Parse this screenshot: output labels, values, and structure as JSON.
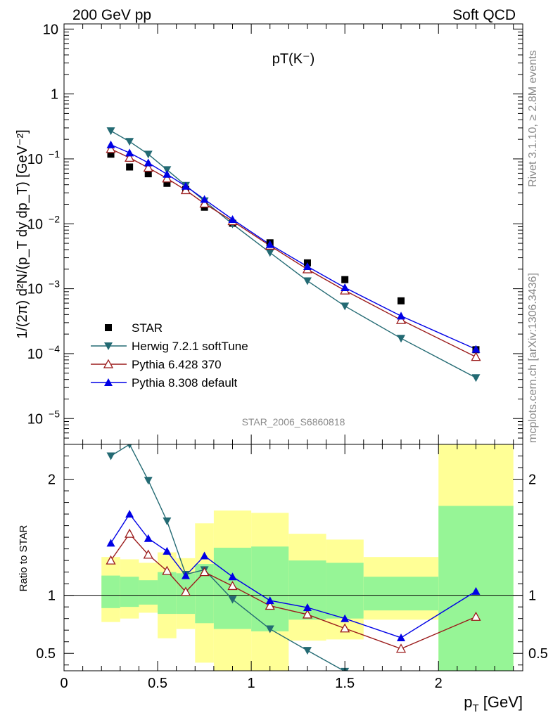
{
  "header": {
    "left": "200 GeV pp",
    "right": "Soft QCD"
  },
  "side_text": {
    "rivet": "Rivet 3.1.10, ≥ 2.8M events",
    "mcplots": "mcplots.cern.ch [arXiv:1306.3436]"
  },
  "plot_title": "pT(K⁻)",
  "watermark": "STAR_2006_S6860818",
  "colors": {
    "STAR": "#000000",
    "Herwig": "#236a73",
    "Pythia6": "#9b1b1b",
    "Pythia8": "#0000e6",
    "band_inner": "#96f596",
    "band_outer": "#ffff96"
  },
  "chart_data": [
    {
      "type": "scatter",
      "panel": "main",
      "ylabel": "1/(2π) d²N/(p_T dy dp_T) [GeV⁻²]",
      "yscale": "log",
      "ylim": [
        4e-06,
        12
      ],
      "xlim": [
        0,
        2.45
      ],
      "yticks": [
        {
          "v": 1e-05,
          "base": "10",
          "exp": "−5"
        },
        {
          "v": 0.0001,
          "base": "10",
          "exp": "−4"
        },
        {
          "v": 0.001,
          "base": "10",
          "exp": "−3"
        },
        {
          "v": 0.01,
          "base": "10",
          "exp": "−2"
        },
        {
          "v": 0.1,
          "base": "10",
          "exp": "−1"
        },
        {
          "v": 1,
          "base": "1",
          "exp": ""
        },
        {
          "v": 10,
          "base": "10",
          "exp": ""
        }
      ],
      "legend_position": "bottom-left",
      "series": [
        {
          "name": "STAR",
          "key": "STAR",
          "marker": "square",
          "line": false,
          "x": [
            0.25,
            0.35,
            0.45,
            0.55,
            0.65,
            0.75,
            0.9,
            1.1,
            1.3,
            1.5,
            1.8,
            2.2
          ],
          "y": [
            0.118,
            0.075,
            0.059,
            0.042,
            0.034,
            0.018,
            0.0102,
            0.0051,
            0.0025,
            0.00138,
            0.00065,
            0.000115
          ]
        },
        {
          "name": "Herwig 7.2.1 softTune",
          "key": "Herwig",
          "marker": "triangle-down",
          "line": true,
          "x": [
            0.25,
            0.35,
            0.45,
            0.55,
            0.65,
            0.75,
            0.9,
            1.1,
            1.3,
            1.5,
            1.8,
            2.2
          ],
          "y": [
            0.27,
            0.185,
            0.118,
            0.068,
            0.039,
            0.0225,
            0.0099,
            0.0036,
            0.00132,
            0.00054,
            0.000172,
            4.25e-05
          ]
        },
        {
          "name": "Pythia 6.428 370",
          "key": "Pythia6",
          "marker": "triangle-open",
          "line": true,
          "x": [
            0.25,
            0.35,
            0.45,
            0.55,
            0.65,
            0.75,
            0.9,
            1.1,
            1.3,
            1.5,
            1.8,
            2.2
          ],
          "y": [
            0.142,
            0.104,
            0.073,
            0.05,
            0.033,
            0.0205,
            0.011,
            0.0046,
            0.00199,
            0.00094,
            0.00033,
            8.9e-05
          ]
        },
        {
          "name": "Pythia 8.308 default",
          "key": "Pythia8",
          "marker": "triangle-up",
          "line": true,
          "x": [
            0.25,
            0.35,
            0.45,
            0.55,
            0.65,
            0.75,
            0.9,
            1.1,
            1.3,
            1.5,
            1.8,
            2.2
          ],
          "y": [
            0.165,
            0.124,
            0.087,
            0.058,
            0.038,
            0.0238,
            0.0117,
            0.0048,
            0.0022,
            0.00104,
            0.00038,
            0.000117
          ]
        }
      ]
    },
    {
      "type": "line",
      "panel": "ratio",
      "ylabel": "Ratio to STAR",
      "xlabel": "p_T [GeV]",
      "ylim": [
        0.35,
        2.3
      ],
      "xlim": [
        0,
        2.45
      ],
      "xticks": [
        0,
        0.5,
        1,
        1.5,
        2
      ],
      "xtick_labels": [
        "0",
        "0.5",
        "1",
        "1.5",
        "2"
      ],
      "yticks": [
        0.5,
        1,
        2
      ],
      "ytick_labels": [
        "0.5",
        "1",
        "2"
      ],
      "reference_line": 1,
      "bands": [
        {
          "x0": 0.2,
          "x1": 0.3,
          "inner": [
            0.89,
            1.17
          ],
          "outer": [
            0.77,
            1.33
          ]
        },
        {
          "x0": 0.3,
          "x1": 0.4,
          "inner": [
            0.9,
            1.16
          ],
          "outer": [
            0.8,
            1.31
          ]
        },
        {
          "x0": 0.4,
          "x1": 0.5,
          "inner": [
            0.92,
            1.13
          ],
          "outer": [
            0.85,
            1.28
          ]
        },
        {
          "x0": 0.5,
          "x1": 0.6,
          "inner": [
            0.84,
            1.2
          ],
          "outer": [
            0.63,
            1.37
          ]
        },
        {
          "x0": 0.6,
          "x1": 0.7,
          "inner": [
            0.84,
            1.19
          ],
          "outer": [
            0.71,
            1.32
          ]
        },
        {
          "x0": 0.7,
          "x1": 0.8,
          "inner": [
            0.76,
            1.27
          ],
          "outer": [
            0.42,
            1.62
          ]
        },
        {
          "x0": 0.8,
          "x1": 1.0,
          "inner": [
            0.71,
            1.41
          ],
          "outer": [
            0.3,
            1.73
          ]
        },
        {
          "x0": 1.0,
          "x1": 1.2,
          "inner": [
            0.69,
            1.42
          ],
          "outer": [
            0.3,
            1.71
          ]
        },
        {
          "x0": 1.2,
          "x1": 1.4,
          "inner": [
            0.79,
            1.3
          ],
          "outer": [
            0.61,
            1.53
          ]
        },
        {
          "x0": 1.4,
          "x1": 1.6,
          "inner": [
            0.8,
            1.28
          ],
          "outer": [
            0.62,
            1.48
          ]
        },
        {
          "x0": 1.6,
          "x1": 2.0,
          "inner": [
            0.87,
            1.16
          ],
          "outer": [
            0.79,
            1.33
          ]
        },
        {
          "x0": 2.0,
          "x1": 2.4,
          "inner": [
            0.3,
            1.77
          ],
          "outer": [
            0.3,
            2.3
          ]
        }
      ],
      "series": [
        {
          "name": "Herwig 7.2.1 softTune",
          "key": "Herwig",
          "marker": "triangle-down",
          "x": [
            0.25,
            0.35,
            0.45,
            0.55,
            0.65,
            0.75,
            0.9,
            1.1,
            1.3,
            1.5
          ],
          "y": [
            2.2,
            2.3,
            1.99,
            1.64,
            1.18,
            1.22,
            0.965,
            0.71,
            0.525,
            0.345
          ]
        },
        {
          "name": "Pythia 6.428 370",
          "key": "Pythia6",
          "marker": "triangle-open",
          "x": [
            0.25,
            0.35,
            0.45,
            0.55,
            0.65,
            0.75,
            0.9,
            1.1,
            1.3,
            1.5,
            1.8,
            2.2
          ],
          "y": [
            1.3,
            1.53,
            1.35,
            1.21,
            1.03,
            1.2,
            1.08,
            0.91,
            0.835,
            0.715,
            0.54,
            0.815
          ]
        },
        {
          "name": "Pythia 8.308 default",
          "key": "Pythia8",
          "marker": "triangle-up",
          "x": [
            0.25,
            0.35,
            0.45,
            0.55,
            0.65,
            0.75,
            0.9,
            1.1,
            1.3,
            1.5,
            1.8,
            2.2
          ],
          "y": [
            1.45,
            1.7,
            1.49,
            1.38,
            1.17,
            1.34,
            1.16,
            0.955,
            0.895,
            0.8,
            0.635,
            1.035
          ]
        }
      ]
    }
  ]
}
